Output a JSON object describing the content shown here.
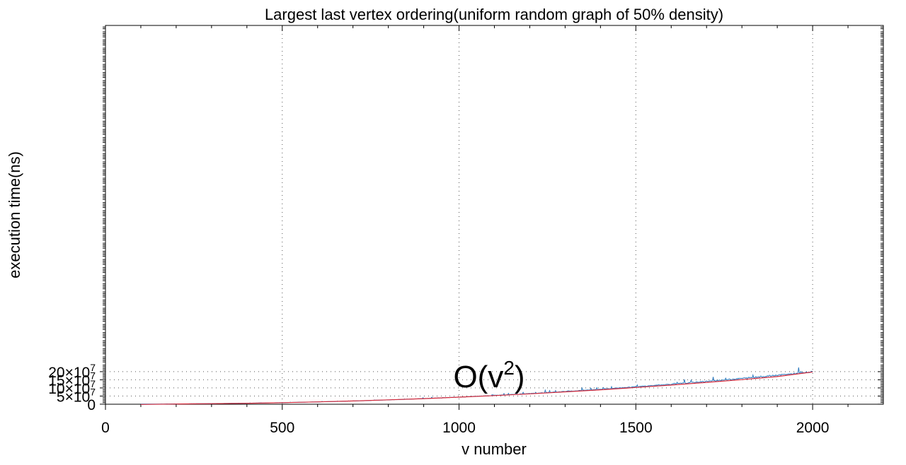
{
  "chart_data": {
    "type": "line",
    "title": "Largest last vertex ordering(uniform random graph of 50% density)",
    "xlabel": "v number",
    "ylabel": "execution time(ns)",
    "xlim": [
      0,
      2200
    ],
    "ylim": [
      -300000,
      2330000000
    ],
    "x_ticks": [
      0,
      500,
      1000,
      1500,
      2000
    ],
    "x_tick_labels": [
      "0",
      "500",
      "1000",
      "1500",
      "2000"
    ],
    "y_ticks": [
      0,
      50000000,
      100000000,
      150000000,
      200000000
    ],
    "y_tick_labels": [
      {
        "mant": "0",
        "exp": ""
      },
      {
        "mant": "5×10",
        "exp": "7"
      },
      {
        "mant": "10×10",
        "exp": "7"
      },
      {
        "mant": "15×10",
        "exp": "7"
      },
      {
        "mant": "20×10",
        "exp": "7"
      }
    ],
    "grid": true,
    "annotation": {
      "text": "O(v",
      "sup": "2",
      "tail": ")",
      "x": 1085,
      "y": 104000000
    },
    "series": [
      {
        "kind": "measured",
        "color": "#2e7bbf",
        "x": [
          100,
          125,
          150,
          175,
          200,
          225,
          250,
          275,
          300,
          325,
          350,
          375,
          400,
          425,
          450,
          475,
          500,
          525,
          550,
          575,
          600,
          625,
          650,
          675,
          700,
          725,
          750,
          775,
          800,
          825,
          850,
          875,
          900,
          925,
          950,
          975,
          1000,
          1025,
          1050,
          1075,
          1100,
          1125,
          1150,
          1175,
          1200,
          1225,
          1250,
          1275,
          1300,
          1325,
          1350,
          1375,
          1400,
          1425,
          1450,
          1475,
          1500,
          1525,
          1550,
          1575,
          1600,
          1625,
          1650,
          1675,
          1700,
          1725,
          1750,
          1775,
          1800,
          1825,
          1850,
          1875,
          1900,
          1925,
          1950,
          1975,
          2000
        ],
        "y": [
          500000.0,
          800000.0,
          1000000.0,
          1300000.0,
          1600000.0,
          2000000.0,
          2400000.0,
          2900000.0,
          3400000.0,
          4000000.0,
          4600000.0,
          5300000.0,
          6000000.0,
          6800000.0,
          7600000.0,
          8500000.0,
          9500000.0,
          10500000.0,
          11600000.0,
          12700000.0,
          13900000.0,
          15200000.0,
          16600000.0,
          18000000.0,
          19500000.0,
          21000000.0,
          22700000.0,
          24400000.0,
          26200000.0,
          28000000.0,
          30000000.0,
          32000000.0,
          34100000.0,
          36300000.0,
          38500000.0,
          40800000.0,
          43200000.0,
          45700000.0,
          48200000.0,
          50800000.0,
          53500000.0,
          56300000.0,
          59100000.0,
          62000000.0,
          65000000.0,
          68000000.0,
          71200000.0,
          74300000.0,
          77600000.0,
          80900000.0,
          84300000.0,
          87800000.0,
          91300000.0,
          94900000.0,
          98600000.0,
          102400000.0,
          106200000.0,
          110100000.0,
          114000000.0,
          118100000.0,
          122200000.0,
          126300000.0,
          130600000.0,
          134900000.0,
          139300000.0,
          143700000.0,
          148300000.0,
          152900000.0,
          157500000.0,
          162300000.0,
          167100000.0,
          172000000.0,
          176900000.0,
          181900000.0,
          187000000.0,
          192200000.0,
          197400000.0
        ]
      },
      {
        "kind": "fit",
        "color": "#d62a3a",
        "x": [
          100,
          200,
          300,
          400,
          500,
          600,
          700,
          800,
          900,
          1000,
          1100,
          1200,
          1300,
          1400,
          1500,
          1600,
          1700,
          1800,
          1900,
          2000
        ],
        "y": [
          -1500000.0,
          1000000.0,
          3000000.0,
          5500000.0,
          9300000.0,
          14000000.0,
          19800000.0,
          26500000.0,
          34200000.0,
          43000000.0,
          52800000.0,
          63700000.0,
          75600000.0,
          88600000.0,
          102600000.0,
          117700000.0,
          133900000.0,
          151200000.0,
          169500000.0,
          198500000.0
        ]
      }
    ]
  }
}
